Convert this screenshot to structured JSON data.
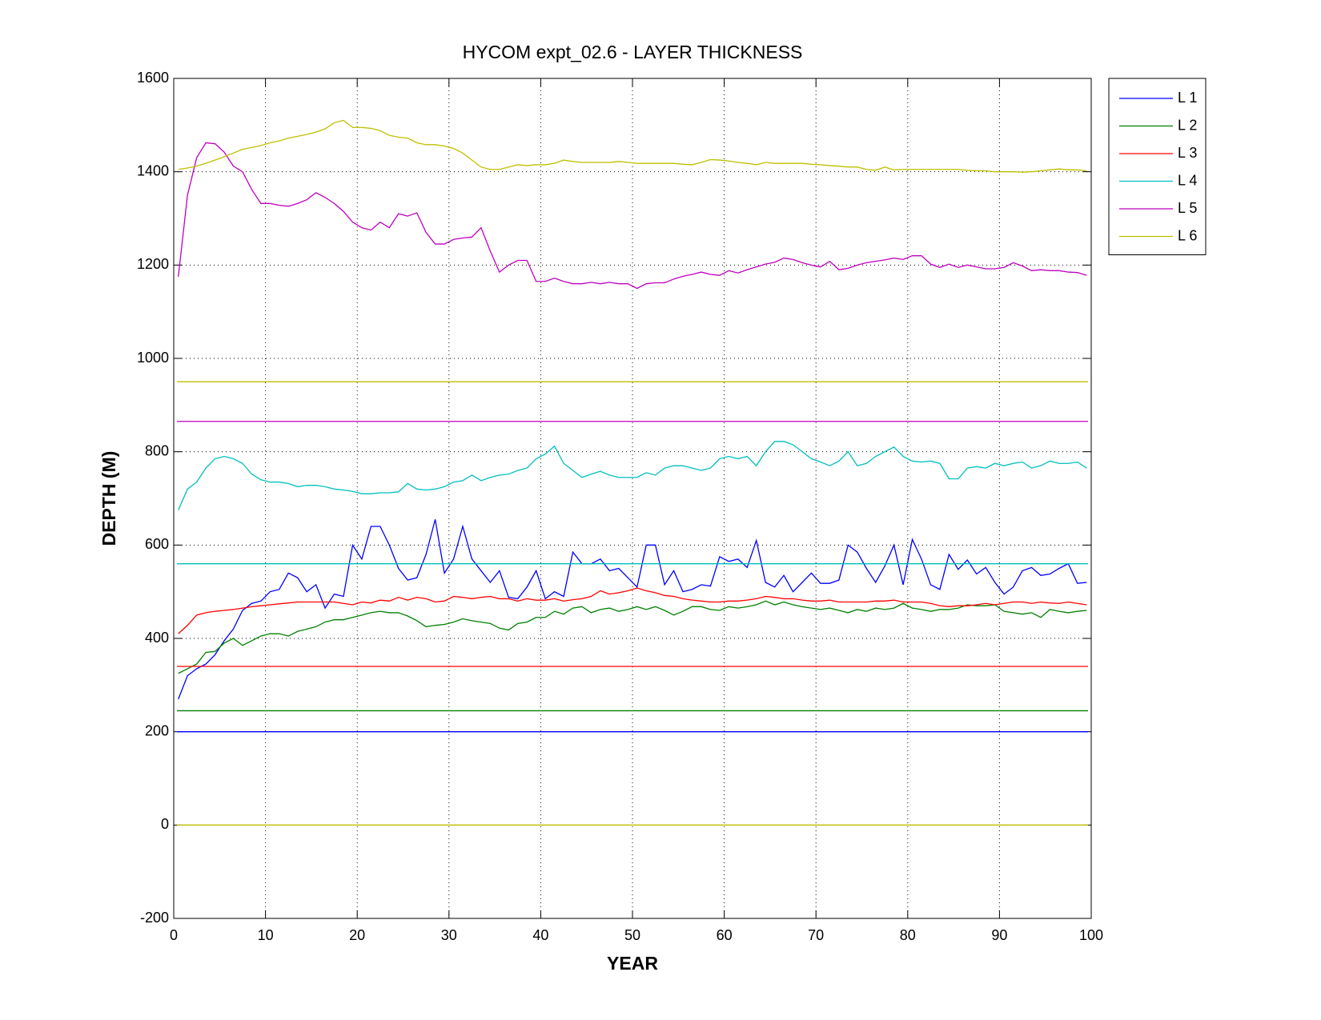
{
  "chart_data": {
    "type": "line",
    "title": "HYCOM expt_02.6 - LAYER THICKNESS",
    "xlabel": "YEAR",
    "ylabel": "DEPTH (M)",
    "xlim": [
      0,
      100
    ],
    "ylim": [
      -200,
      1600
    ],
    "xticks": [
      0,
      10,
      20,
      30,
      40,
      50,
      60,
      70,
      80,
      90,
      100
    ],
    "yticks": [
      -200,
      0,
      200,
      400,
      600,
      800,
      1000,
      1200,
      1400,
      1600
    ],
    "grid": true,
    "legend": "outside-top-right",
    "x": [
      0.5,
      1.5,
      2.5,
      3.5,
      4.5,
      5.5,
      6.5,
      7.5,
      8.5,
      9.5,
      10.5,
      11.5,
      12.5,
      13.5,
      14.5,
      15.5,
      16.5,
      17.5,
      18.5,
      19.5,
      20.5,
      21.5,
      22.5,
      23.5,
      24.5,
      25.5,
      26.5,
      27.5,
      28.5,
      29.5,
      30.5,
      31.5,
      32.5,
      33.5,
      34.5,
      35.5,
      36.5,
      37.5,
      38.5,
      39.5,
      40.5,
      41.5,
      42.5,
      43.5,
      44.5,
      45.5,
      46.5,
      47.5,
      48.5,
      49.5,
      50.5,
      51.5,
      52.5,
      53.5,
      54.5,
      55.5,
      56.5,
      57.5,
      58.5,
      59.5,
      60.5,
      61.5,
      62.5,
      63.5,
      64.5,
      65.5,
      66.5,
      67.5,
      68.5,
      69.5,
      70.5,
      71.5,
      72.5,
      73.5,
      74.5,
      75.5,
      76.5,
      77.5,
      78.5,
      79.5,
      80.5,
      81.5,
      82.5,
      83.5,
      84.5,
      85.5,
      86.5,
      87.5,
      88.5,
      89.5,
      90.5,
      91.5,
      92.5,
      93.5,
      94.5,
      95.5,
      96.5,
      97.5,
      98.5,
      99.5
    ],
    "series": [
      {
        "name": "L 1",
        "color": "#0000ff",
        "levels": [
          200
        ],
        "values": [
          270,
          320,
          335,
          345,
          365,
          395,
          420,
          460,
          475,
          480,
          500,
          505,
          540,
          530,
          500,
          515,
          465,
          495,
          490,
          600,
          570,
          640,
          640,
          600,
          550,
          525,
          530,
          580,
          655,
          540,
          570,
          640,
          570,
          545,
          520,
          545,
          488,
          485,
          510,
          545,
          485,
          500,
          490,
          585,
          560,
          560,
          570,
          545,
          550,
          530,
          510,
          600,
          600,
          515,
          545,
          500,
          505,
          515,
          512,
          575,
          565,
          570,
          552,
          610,
          520,
          510,
          535,
          500,
          520,
          540,
          518,
          518,
          525,
          600,
          585,
          550,
          520,
          555,
          600,
          515,
          612,
          570,
          515,
          505,
          580,
          548,
          568,
          538,
          552,
          520,
          495,
          510,
          545,
          552,
          535,
          538,
          550,
          560,
          518,
          520
        ]
      },
      {
        "name": "L 2",
        "color": "#008000",
        "levels": [
          245
        ],
        "values": [
          325,
          335,
          345,
          370,
          372,
          390,
          400,
          385,
          395,
          405,
          410,
          410,
          405,
          415,
          420,
          425,
          435,
          440,
          440,
          445,
          450,
          455,
          458,
          455,
          455,
          448,
          438,
          425,
          428,
          430,
          435,
          442,
          438,
          435,
          432,
          422,
          418,
          432,
          435,
          445,
          445,
          458,
          452,
          465,
          468,
          455,
          462,
          465,
          458,
          462,
          468,
          462,
          468,
          460,
          450,
          458,
          468,
          468,
          462,
          460,
          468,
          465,
          468,
          472,
          480,
          472,
          478,
          472,
          468,
          465,
          462,
          465,
          460,
          455,
          462,
          458,
          465,
          462,
          465,
          475,
          465,
          462,
          458,
          462,
          462,
          465,
          472,
          470,
          470,
          472,
          458,
          455,
          452,
          455,
          445,
          462,
          458,
          455,
          458,
          460
        ]
      },
      {
        "name": "L 3",
        "color": "#ff0000",
        "levels": [
          340
        ],
        "values": [
          410,
          428,
          450,
          455,
          458,
          460,
          462,
          465,
          468,
          470,
          472,
          474,
          476,
          478,
          478,
          478,
          478,
          478,
          475,
          472,
          478,
          476,
          482,
          480,
          488,
          482,
          488,
          485,
          478,
          480,
          490,
          488,
          485,
          488,
          490,
          485,
          485,
          480,
          485,
          482,
          482,
          485,
          480,
          483,
          485,
          490,
          502,
          495,
          498,
          502,
          508,
          502,
          498,
          492,
          490,
          485,
          482,
          480,
          478,
          478,
          480,
          480,
          482,
          485,
          490,
          488,
          485,
          485,
          482,
          480,
          480,
          482,
          478,
          478,
          478,
          478,
          480,
          480,
          482,
          478,
          478,
          478,
          475,
          470,
          468,
          470,
          470,
          472,
          475,
          472,
          475,
          478,
          478,
          475,
          478,
          476,
          475,
          478,
          475,
          472
        ]
      },
      {
        "name": "L 4",
        "color": "#00bfbf",
        "levels": [
          560
        ],
        "values": [
          675,
          720,
          735,
          765,
          785,
          790,
          785,
          775,
          752,
          740,
          735,
          735,
          732,
          725,
          728,
          728,
          725,
          720,
          718,
          715,
          710,
          710,
          712,
          712,
          714,
          732,
          720,
          718,
          720,
          725,
          735,
          738,
          750,
          738,
          745,
          750,
          752,
          760,
          765,
          785,
          795,
          812,
          775,
          760,
          745,
          752,
          758,
          750,
          745,
          745,
          745,
          755,
          750,
          765,
          770,
          770,
          765,
          760,
          765,
          785,
          790,
          785,
          790,
          770,
          800,
          822,
          822,
          815,
          800,
          785,
          778,
          770,
          780,
          800,
          770,
          775,
          790,
          800,
          810,
          790,
          780,
          778,
          780,
          775,
          742,
          742,
          765,
          768,
          765,
          775,
          770,
          775,
          778,
          765,
          770,
          780,
          775,
          775,
          778,
          765
        ]
      },
      {
        "name": "L 5",
        "color": "#bf00bf",
        "levels": [
          865
        ],
        "values": [
          1175,
          1350,
          1430,
          1462,
          1460,
          1442,
          1412,
          1400,
          1362,
          1332,
          1332,
          1328,
          1326,
          1332,
          1340,
          1355,
          1345,
          1332,
          1315,
          1292,
          1280,
          1275,
          1292,
          1280,
          1310,
          1305,
          1312,
          1270,
          1245,
          1245,
          1255,
          1258,
          1260,
          1280,
          1230,
          1185,
          1200,
          1210,
          1210,
          1165,
          1165,
          1172,
          1165,
          1160,
          1160,
          1163,
          1160,
          1163,
          1160,
          1160,
          1150,
          1160,
          1162,
          1162,
          1170,
          1176,
          1180,
          1185,
          1180,
          1178,
          1188,
          1183,
          1190,
          1196,
          1202,
          1206,
          1215,
          1212,
          1205,
          1200,
          1196,
          1208,
          1190,
          1193,
          1200,
          1205,
          1208,
          1211,
          1215,
          1212,
          1220,
          1220,
          1202,
          1195,
          1202,
          1195,
          1200,
          1196,
          1192,
          1192,
          1195,
          1205,
          1198,
          1188,
          1190,
          1188,
          1188,
          1185,
          1184,
          1178
        ]
      },
      {
        "name": "L 6",
        "color": "#bfbf00",
        "levels": [
          950,
          0
        ],
        "values": [
          1405,
          1408,
          1412,
          1418,
          1425,
          1432,
          1440,
          1448,
          1452,
          1456,
          1462,
          1466,
          1472,
          1476,
          1480,
          1485,
          1492,
          1505,
          1510,
          1495,
          1495,
          1493,
          1488,
          1478,
          1474,
          1472,
          1462,
          1458,
          1458,
          1455,
          1450,
          1440,
          1425,
          1410,
          1405,
          1405,
          1410,
          1415,
          1413,
          1415,
          1415,
          1418,
          1425,
          1422,
          1420,
          1420,
          1420,
          1420,
          1422,
          1420,
          1418,
          1418,
          1418,
          1418,
          1418,
          1416,
          1415,
          1420,
          1426,
          1425,
          1423,
          1420,
          1418,
          1415,
          1420,
          1418,
          1418,
          1418,
          1418,
          1416,
          1415,
          1413,
          1412,
          1410,
          1410,
          1405,
          1403,
          1410,
          1404,
          1405,
          1405,
          1405,
          1405,
          1405,
          1405,
          1405,
          1403,
          1402,
          1402,
          1400,
          1400,
          1400,
          1399,
          1400,
          1402,
          1404,
          1406,
          1404,
          1404,
          1402
        ]
      }
    ]
  }
}
